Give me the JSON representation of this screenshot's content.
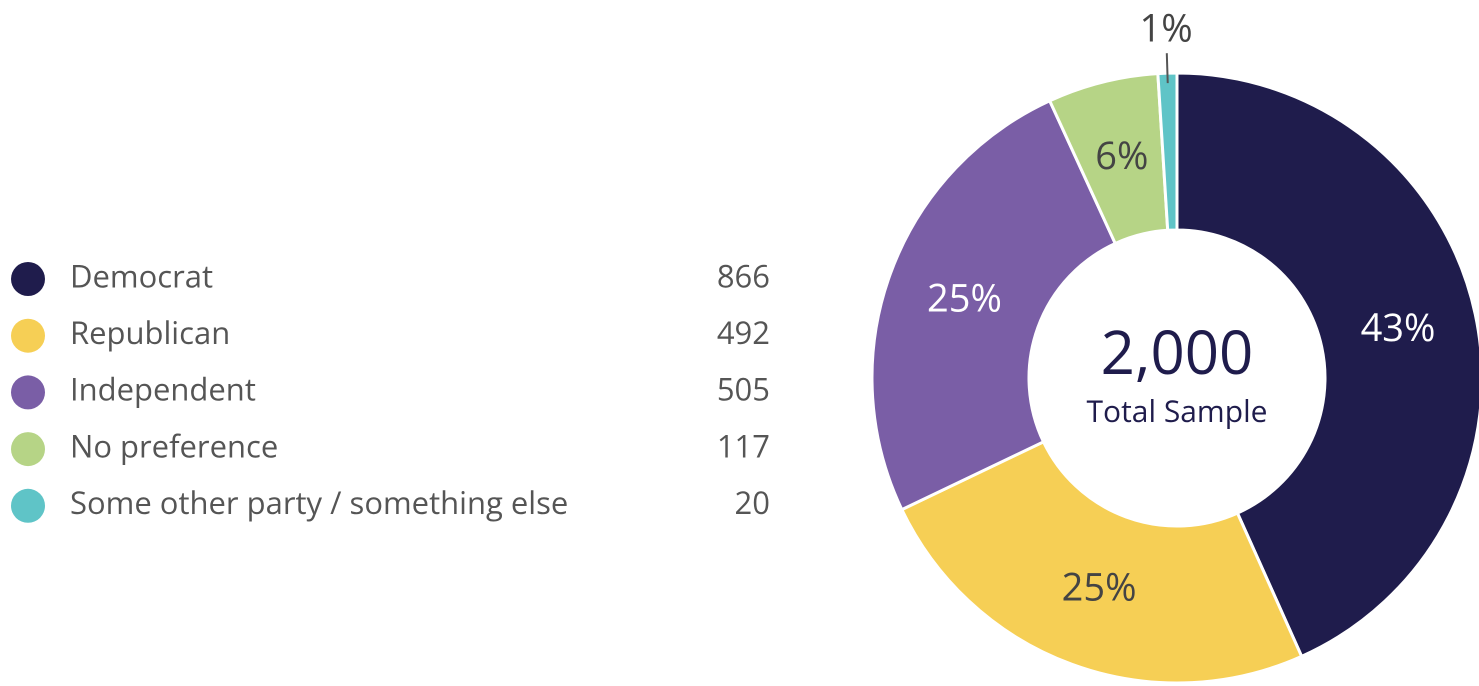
{
  "chart_data": {
    "type": "donut",
    "categories": [
      "Democrat",
      "Republican",
      "Independent",
      "No preference",
      "Some other party / something else"
    ],
    "values": [
      866,
      492,
      505,
      117,
      20
    ],
    "colors": [
      "#1f1c4c",
      "#f6cf55",
      "#7a5ea6",
      "#b6d486",
      "#5fc4c7"
    ],
    "data_labels": [
      "43%",
      "25%",
      "25%",
      "6%",
      "1%"
    ],
    "center_value": "2,000",
    "center_label": "Total Sample"
  }
}
